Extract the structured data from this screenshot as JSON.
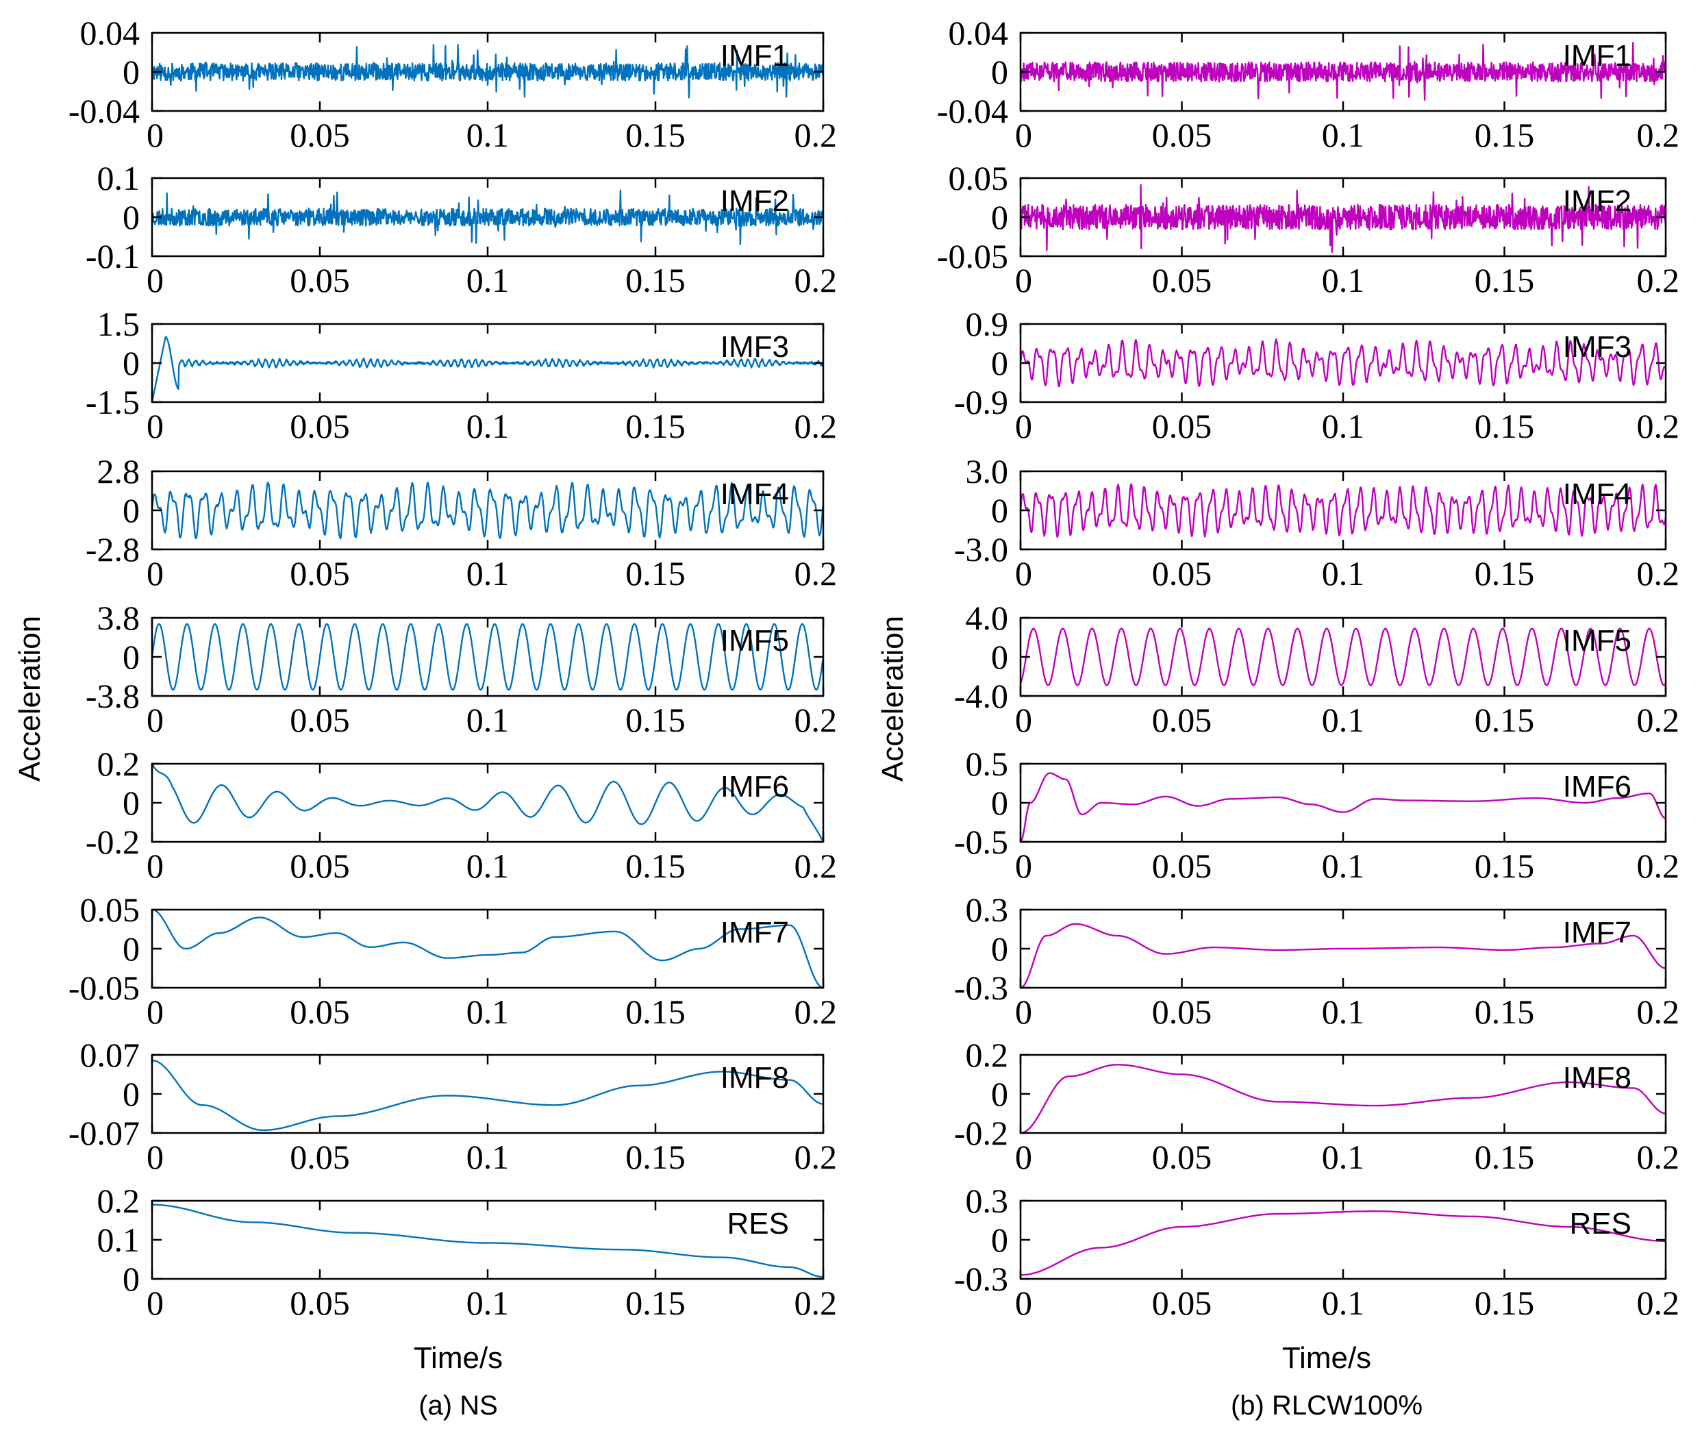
{
  "figure": {
    "ylabel": "Acceleration",
    "xlabel": "Time/s",
    "panel_labels": [
      "(a) NS",
      "(b) RLCW100%"
    ],
    "colors": {
      "NS": "#0072BD",
      "RLCW100%": "#BF00BF"
    }
  },
  "chart_data": [
    {
      "type": "line",
      "column": "NS",
      "color": "#0072BD",
      "xlim": [
        0,
        0.2
      ],
      "xticks": [
        "0",
        "0.05",
        "0.1",
        "0.15",
        "0.2"
      ],
      "xlabel": "Time/s",
      "ylabel": "Acceleration",
      "caption": "(a) NS",
      "subplots": [
        {
          "name": "IMF1",
          "ylim": [
            -0.04,
            0.04
          ],
          "yticks": [
            "0.04",
            "0",
            "-0.04"
          ],
          "signal": {
            "kind": "noise",
            "amp": 0.009,
            "spikes": 0.028,
            "seed": 11
          }
        },
        {
          "name": "IMF2",
          "ylim": [
            -0.1,
            0.1
          ],
          "yticks": [
            "0.1",
            "0",
            "-0.1"
          ],
          "signal": {
            "kind": "noise",
            "amp": 0.022,
            "spikes": 0.07,
            "seed": 23
          }
        },
        {
          "name": "IMF3",
          "ylim": [
            -1.5,
            1.5
          ],
          "yticks": [
            "1.5",
            "0",
            "-1.5"
          ],
          "signal": {
            "kind": "osc",
            "freq": 480,
            "amp": 0.13,
            "start_spike": 1.0,
            "seed": 31
          }
        },
        {
          "name": "IMF4",
          "ylim": [
            -2.8,
            2.8
          ],
          "yticks": [
            "2.8",
            "0",
            "-2.8"
          ],
          "signal": {
            "kind": "beat",
            "freq": 210,
            "amp": 1.5,
            "mod": 0.45,
            "seed": 41
          }
        },
        {
          "name": "IMF5",
          "ylim": [
            -3.8,
            3.8
          ],
          "yticks": [
            "3.8",
            "0",
            "-3.8"
          ],
          "signal": {
            "kind": "sine",
            "freq": 120,
            "amp": 3.2,
            "phase": 0.0
          }
        },
        {
          "name": "IMF6",
          "ylim": [
            -0.2,
            0.2
          ],
          "yticks": [
            "0.2",
            "0",
            "-0.2"
          ],
          "signal": {
            "kind": "decay",
            "freq": 60,
            "amp": 0.11,
            "seed": 53,
            "start": 0.2,
            "end": -0.2
          }
        },
        {
          "name": "IMF7",
          "ylim": [
            -0.05,
            0.05
          ],
          "yticks": [
            "0.05",
            "0",
            "-0.05"
          ],
          "signal": {
            "kind": "points",
            "x": [
              0,
              0.01,
              0.02,
              0.032,
              0.045,
              0.055,
              0.065,
              0.075,
              0.088,
              0.1,
              0.11,
              0.12,
              0.138,
              0.152,
              0.163,
              0.175,
              0.19,
              0.2
            ],
            "y": [
              0.05,
              0.0,
              0.02,
              0.04,
              0.015,
              0.02,
              0.002,
              0.008,
              -0.012,
              -0.008,
              -0.005,
              0.015,
              0.022,
              -0.015,
              0.0,
              0.025,
              0.03,
              -0.05
            ]
          }
        },
        {
          "name": "IMF8",
          "ylim": [
            -0.07,
            0.07
          ],
          "yticks": [
            "0.07",
            "0",
            "-0.07"
          ],
          "signal": {
            "kind": "points",
            "x": [
              0,
              0.015,
              0.033,
              0.055,
              0.088,
              0.12,
              0.145,
              0.17,
              0.19,
              0.2
            ],
            "y": [
              0.06,
              -0.02,
              -0.065,
              -0.04,
              -0.003,
              -0.02,
              0.015,
              0.04,
              0.025,
              -0.018
            ]
          }
        },
        {
          "name": "RES",
          "ylim": [
            0,
            0.2
          ],
          "yticks": [
            "0.2",
            "0.1",
            "0"
          ],
          "signal": {
            "kind": "points",
            "x": [
              0,
              0.03,
              0.06,
              0.1,
              0.14,
              0.17,
              0.19,
              0.2
            ],
            "y": [
              0.19,
              0.145,
              0.118,
              0.092,
              0.075,
              0.055,
              0.03,
              0.005
            ]
          }
        }
      ]
    },
    {
      "type": "line",
      "column": "RLCW100%",
      "color": "#BF00BF",
      "xlim": [
        0,
        0.2
      ],
      "xticks": [
        "0",
        "0.05",
        "0.1",
        "0.15",
        "0.2"
      ],
      "xlabel": "Time/s",
      "ylabel": "Acceleration",
      "caption": "(b) RLCW100%",
      "subplots": [
        {
          "name": "IMF1",
          "ylim": [
            -0.04,
            0.04
          ],
          "yticks": [
            "0.04",
            "0",
            "-0.04"
          ],
          "signal": {
            "kind": "noise",
            "amp": 0.01,
            "spikes": 0.03,
            "seed": 61
          }
        },
        {
          "name": "IMF2",
          "ylim": [
            -0.05,
            0.05
          ],
          "yticks": [
            "0.05",
            "0",
            "-0.05"
          ],
          "signal": {
            "kind": "noise",
            "amp": 0.016,
            "spikes": 0.045,
            "seed": 73
          }
        },
        {
          "name": "IMF3",
          "ylim": [
            -0.9,
            0.9
          ],
          "yticks": [
            "0.9",
            "0",
            "-0.9"
          ],
          "signal": {
            "kind": "beat",
            "freq": 230,
            "amp": 0.4,
            "mod": 0.6,
            "seed": 83
          }
        },
        {
          "name": "IMF4",
          "ylim": [
            -3.0,
            3.0
          ],
          "yticks": [
            "3.0",
            "0",
            "-3.0"
          ],
          "signal": {
            "kind": "beat",
            "freq": 240,
            "amp": 1.5,
            "mod": 0.35,
            "seed": 97
          }
        },
        {
          "name": "IMF5",
          "ylim": [
            -4.0,
            4.0
          ],
          "yticks": [
            "4.0",
            "0",
            "-4.0"
          ],
          "signal": {
            "kind": "sine",
            "freq": 110,
            "amp": 2.9,
            "phase": -1.2
          }
        },
        {
          "name": "IMF6",
          "ylim": [
            -0.5,
            0.5
          ],
          "yticks": [
            "0.5",
            "0",
            "-0.5"
          ],
          "signal": {
            "kind": "points",
            "x": [
              0,
              0.003,
              0.009,
              0.014,
              0.019,
              0.025,
              0.035,
              0.045,
              0.055,
              0.065,
              0.08,
              0.09,
              0.1,
              0.11,
              0.12,
              0.14,
              0.16,
              0.175,
              0.185,
              0.195,
              0.2
            ],
            "y": [
              -0.5,
              0.0,
              0.38,
              0.3,
              -0.15,
              0.0,
              -0.02,
              0.08,
              -0.04,
              0.05,
              0.07,
              -0.02,
              -0.12,
              0.05,
              0.03,
              0.02,
              0.06,
              0.0,
              0.06,
              0.12,
              -0.2
            ]
          }
        },
        {
          "name": "IMF7",
          "ylim": [
            -0.3,
            0.3
          ],
          "yticks": [
            "0.3",
            "0",
            "-0.3"
          ],
          "signal": {
            "kind": "points",
            "x": [
              0,
              0.008,
              0.017,
              0.03,
              0.045,
              0.06,
              0.08,
              0.1,
              0.13,
              0.15,
              0.165,
              0.18,
              0.19,
              0.2
            ],
            "y": [
              -0.3,
              0.1,
              0.19,
              0.1,
              -0.04,
              0.01,
              -0.01,
              0.0,
              0.01,
              -0.01,
              0.01,
              0.04,
              0.1,
              -0.15
            ]
          }
        },
        {
          "name": "IMF8",
          "ylim": [
            -0.2,
            0.2
          ],
          "yticks": [
            "0.2",
            "0",
            "-0.2"
          ],
          "signal": {
            "kind": "points",
            "x": [
              0,
              0.015,
              0.03,
              0.05,
              0.08,
              0.11,
              0.14,
              0.17,
              0.19,
              0.2
            ],
            "y": [
              -0.2,
              0.09,
              0.15,
              0.1,
              -0.04,
              -0.06,
              -0.02,
              0.06,
              0.03,
              -0.1
            ]
          }
        },
        {
          "name": "RES",
          "ylim": [
            -0.3,
            0.3
          ],
          "yticks": [
            "0.3",
            "0",
            "-0.3"
          ],
          "signal": {
            "kind": "points",
            "x": [
              0,
              0.025,
              0.05,
              0.08,
              0.11,
              0.14,
              0.17,
              0.2
            ],
            "y": [
              -0.27,
              -0.06,
              0.1,
              0.2,
              0.22,
              0.18,
              0.1,
              -0.01
            ]
          }
        }
      ]
    }
  ]
}
